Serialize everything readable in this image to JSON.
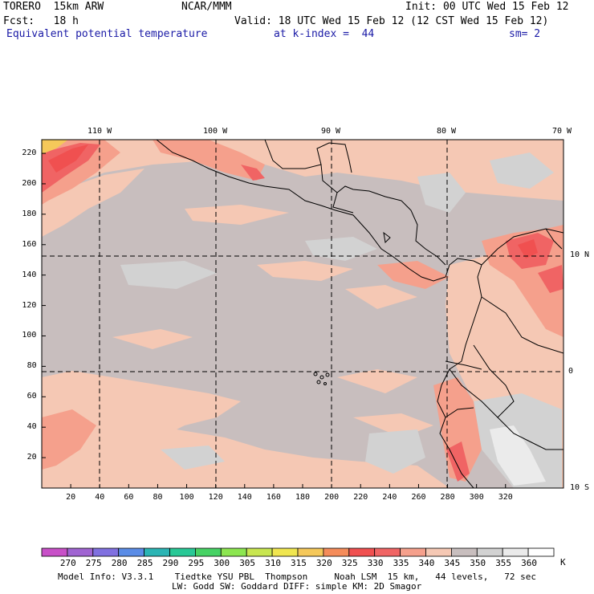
{
  "header": {
    "model": "TORERO  15km ARW",
    "center": "NCAR/MMM",
    "init": "Init: 00 UTC Wed 15 Feb 12",
    "fcst": "Fcst:   18 h",
    "valid": "Valid: 18 UTC Wed 15 Feb 12 (12 CST Wed 15 Feb 12)",
    "field": "Equivalent potential temperature",
    "level": "at k-index =  44",
    "smooth": "sm= 2"
  },
  "map": {
    "lon_labels": [
      "110 W",
      "100 W",
      "90 W",
      "80 W",
      "70 W"
    ],
    "lat_labels": [
      "10 N",
      "0",
      "10 S"
    ],
    "x_ticks": [
      "20",
      "40",
      "60",
      "80",
      "100",
      "120",
      "140",
      "160",
      "180",
      "200",
      "220",
      "240",
      "260",
      "280",
      "300",
      "320"
    ],
    "y_ticks": [
      "220",
      "200",
      "180",
      "160",
      "140",
      "120",
      "100",
      "80",
      "60",
      "40",
      "20"
    ]
  },
  "colorbar": {
    "levels": [
      "270",
      "275",
      "280",
      "285",
      "290",
      "295",
      "300",
      "305",
      "310",
      "315",
      "320",
      "325",
      "330",
      "335",
      "340",
      "345",
      "350",
      "355",
      "360"
    ],
    "unit": "K",
    "colors": [
      "#c850c8",
      "#a064d2",
      "#8070e0",
      "#5a8ce6",
      "#2ab4b4",
      "#28c896",
      "#46d264",
      "#8ce650",
      "#c8e650",
      "#f0e650",
      "#f5c85a",
      "#f58c5a",
      "#f05050",
      "#f06464",
      "#f5a08c",
      "#f5c8b4",
      "#c8bebe",
      "#d2d2d2",
      "#ebebeb",
      "#ffffff"
    ]
  },
  "info": {
    "line1": "Model Info: V3.3.1    Tiedtke YSU PBL  Thompson     Noah LSM  15 km,   44 levels,   72 sec",
    "line2": "LW: Godd SW: Goddard DIFF: simple KM: 2D Smagor"
  }
}
